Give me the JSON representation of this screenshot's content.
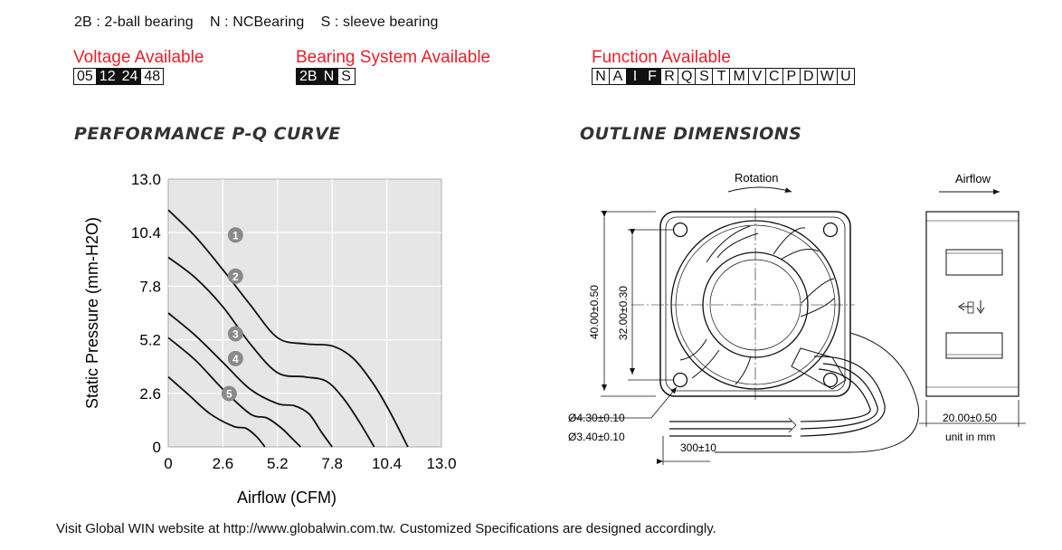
{
  "legend": "2B : 2-ball bearing    N : NCBearing    S : sleeve bearing",
  "voltage": {
    "title": "Voltage Available",
    "options": [
      {
        "label": "05",
        "selected": false
      },
      {
        "label": "12",
        "selected": true
      },
      {
        "label": "24",
        "selected": true
      },
      {
        "label": "48",
        "selected": false
      }
    ]
  },
  "bearing": {
    "title": "Bearing System Available",
    "options": [
      {
        "label": "2B",
        "selected": true
      },
      {
        "label": "N",
        "selected": true
      },
      {
        "label": "S",
        "selected": false
      }
    ]
  },
  "function": {
    "title": "Function Available",
    "options": [
      {
        "label": "N",
        "selected": false
      },
      {
        "label": "A",
        "selected": false
      },
      {
        "label": "I",
        "selected": true
      },
      {
        "label": "F",
        "selected": true
      },
      {
        "label": "R",
        "selected": false
      },
      {
        "label": "Q",
        "selected": false
      },
      {
        "label": "S",
        "selected": false
      },
      {
        "label": "T",
        "selected": false
      },
      {
        "label": "M",
        "selected": false
      },
      {
        "label": "V",
        "selected": false
      },
      {
        "label": "C",
        "selected": false
      },
      {
        "label": "P",
        "selected": false
      },
      {
        "label": "D",
        "selected": false
      },
      {
        "label": "W",
        "selected": false
      },
      {
        "label": "U",
        "selected": false
      }
    ]
  },
  "pq_title": "PERFORMANCE P-Q CURVE",
  "outline_title": "OUTLINE DIMENSIONS",
  "chart_data": {
    "type": "line",
    "xlabel": "Airflow (CFM)",
    "ylabel": "Static Pressure (mm-H2O)",
    "xlim": [
      0,
      13.0
    ],
    "ylim": [
      0,
      13.0
    ],
    "xticks": [
      "0",
      "2.6",
      "5.2",
      "7.8",
      "10.4",
      "13.0"
    ],
    "yticks": [
      "0",
      "2.6",
      "5.2",
      "7.8",
      "10.4",
      "13.0"
    ],
    "grid": true,
    "series": [
      {
        "name": "1",
        "points": [
          [
            0,
            11.5
          ],
          [
            1.3,
            10.2
          ],
          [
            2.6,
            8.6
          ],
          [
            3.9,
            6.9
          ],
          [
            5.2,
            5.3
          ],
          [
            6.5,
            5.0
          ],
          [
            7.8,
            4.9
          ],
          [
            8.8,
            4.3
          ],
          [
            9.8,
            3.0
          ],
          [
            10.6,
            1.6
          ],
          [
            11.4,
            0
          ]
        ]
      },
      {
        "name": "2",
        "points": [
          [
            0,
            9.2
          ],
          [
            1.3,
            8.2
          ],
          [
            2.6,
            6.8
          ],
          [
            3.9,
            5.0
          ],
          [
            5.2,
            3.6
          ],
          [
            6.5,
            3.4
          ],
          [
            7.5,
            3.2
          ],
          [
            8.3,
            2.4
          ],
          [
            9.1,
            1.2
          ],
          [
            9.8,
            0
          ]
        ]
      },
      {
        "name": "3",
        "points": [
          [
            0,
            6.5
          ],
          [
            1.3,
            5.4
          ],
          [
            2.6,
            4.1
          ],
          [
            3.9,
            2.8
          ],
          [
            5.2,
            2.1
          ],
          [
            6.0,
            2.0
          ],
          [
            6.7,
            1.6
          ],
          [
            7.3,
            0.7
          ],
          [
            7.8,
            0
          ]
        ]
      },
      {
        "name": "4",
        "points": [
          [
            0,
            5.3
          ],
          [
            1.3,
            4.2
          ],
          [
            2.6,
            2.8
          ],
          [
            3.9,
            1.6
          ],
          [
            4.7,
            1.4
          ],
          [
            5.4,
            0.9
          ],
          [
            5.9,
            0.4
          ],
          [
            6.3,
            0
          ]
        ]
      },
      {
        "name": "5",
        "points": [
          [
            0,
            3.4
          ],
          [
            1.0,
            2.5
          ],
          [
            2.0,
            1.6
          ],
          [
            3.1,
            1.0
          ],
          [
            3.7,
            0.9
          ],
          [
            4.2,
            0.5
          ],
          [
            4.6,
            0
          ]
        ]
      }
    ]
  },
  "outline": {
    "rotation_label": "Rotation",
    "airflow_label": "Airflow",
    "dim_height": "40.00±0.50",
    "dim_hole_spacing": "32.00±0.30",
    "dim_hole_large": "Ø4.30±0.10",
    "dim_hole_small": "Ø3.40±0.10",
    "dim_lead": "300±10",
    "dim_depth": "20.00±0.50",
    "unit": "unit in mm"
  },
  "footer": "Visit Global WIN website at http://www.globalwin.com.tw. Customized Specifications are designed accordingly."
}
